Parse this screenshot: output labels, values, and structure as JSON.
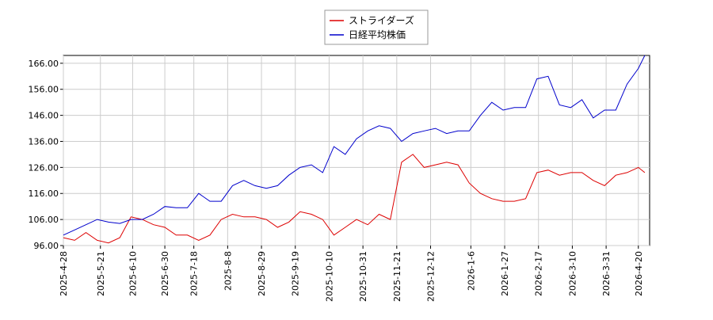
{
  "chart_data": {
    "type": "line",
    "x": [
      "2025-4-28",
      "2025-5-5",
      "2025-5-12",
      "2025-5-19",
      "2025-5-26",
      "2025-6-2",
      "2025-6-9",
      "2025-6-16",
      "2025-6-23",
      "2025-6-30",
      "2025-7-7",
      "2025-7-14",
      "2025-7-21",
      "2025-7-28",
      "2025-8-4",
      "2025-8-11",
      "2025-8-18",
      "2025-8-25",
      "2025-9-1",
      "2025-9-8",
      "2025-9-15",
      "2025-9-22",
      "2025-9-29",
      "2025-10-6",
      "2025-10-13",
      "2025-10-20",
      "2025-10-27",
      "2025-11-3",
      "2025-11-10",
      "2025-11-17",
      "2025-11-24",
      "2025-12-1",
      "2025-12-8",
      "2025-12-15",
      "2025-12-22",
      "2025-12-29",
      "2026-1-5",
      "2026-1-12",
      "2026-1-19",
      "2026-1-26",
      "2026-2-2",
      "2026-2-9",
      "2026-2-16",
      "2026-2-23",
      "2026-3-2",
      "2026-3-9",
      "2026-3-16",
      "2026-3-23",
      "2026-3-30",
      "2026-4-6",
      "2026-4-13",
      "2026-4-20",
      "2026-4-24"
    ],
    "series": [
      {
        "name": "ストライダーズ",
        "color": "#dd0000",
        "values": [
          99,
          98,
          101,
          98,
          97,
          99,
          107,
          106,
          104,
          103,
          100,
          100,
          98,
          100,
          106,
          108,
          107,
          107,
          106,
          103,
          105,
          109,
          108,
          106,
          100,
          103,
          106,
          104,
          108,
          106,
          128,
          131,
          126,
          127,
          128,
          127,
          120,
          116,
          114,
          113,
          113,
          114,
          124,
          125,
          123,
          124,
          124,
          121,
          119,
          123,
          124,
          126,
          124
        ]
      },
      {
        "name": "日経平均株価",
        "color": "#0000cc",
        "values": [
          100,
          102,
          104,
          106,
          105,
          104.5,
          106,
          106,
          108,
          111,
          110.5,
          110.5,
          116,
          113,
          113,
          119,
          121,
          119,
          118,
          119,
          123,
          126,
          127,
          124,
          134,
          131,
          137,
          140,
          142,
          141,
          136,
          139,
          140,
          141,
          139,
          140,
          140,
          146,
          151,
          148,
          149,
          149,
          160,
          161,
          150,
          149,
          152,
          145,
          148,
          148,
          158,
          164,
          169
        ]
      }
    ],
    "xlim": [
      "2025-4-28",
      "2026-4-27"
    ],
    "xticks": [
      "2025-4-28",
      "2025-5-21",
      "2025-6-10",
      "2025-6-30",
      "2025-7-18",
      "2025-8-8",
      "2025-8-29",
      "2025-9-19",
      "2025-10-10",
      "2025-10-31",
      "2025-11-21",
      "2025-12-12",
      "2026-1-6",
      "2026-1-27",
      "2026-2-17",
      "2026-3-10",
      "2026-3-31",
      "2026-4-20"
    ],
    "ylim": [
      96,
      169
    ],
    "yticks": [
      {
        "value": 96,
        "label": "96.00"
      },
      {
        "value": 106,
        "label": "106.00"
      },
      {
        "value": 116,
        "label": "116.00"
      },
      {
        "value": 126,
        "label": "126.00"
      },
      {
        "value": 136,
        "label": "136.00"
      },
      {
        "value": 146,
        "label": "146.00"
      },
      {
        "value": 156,
        "label": "156.00"
      },
      {
        "value": 166,
        "label": "166.00"
      }
    ],
    "grid": true
  }
}
